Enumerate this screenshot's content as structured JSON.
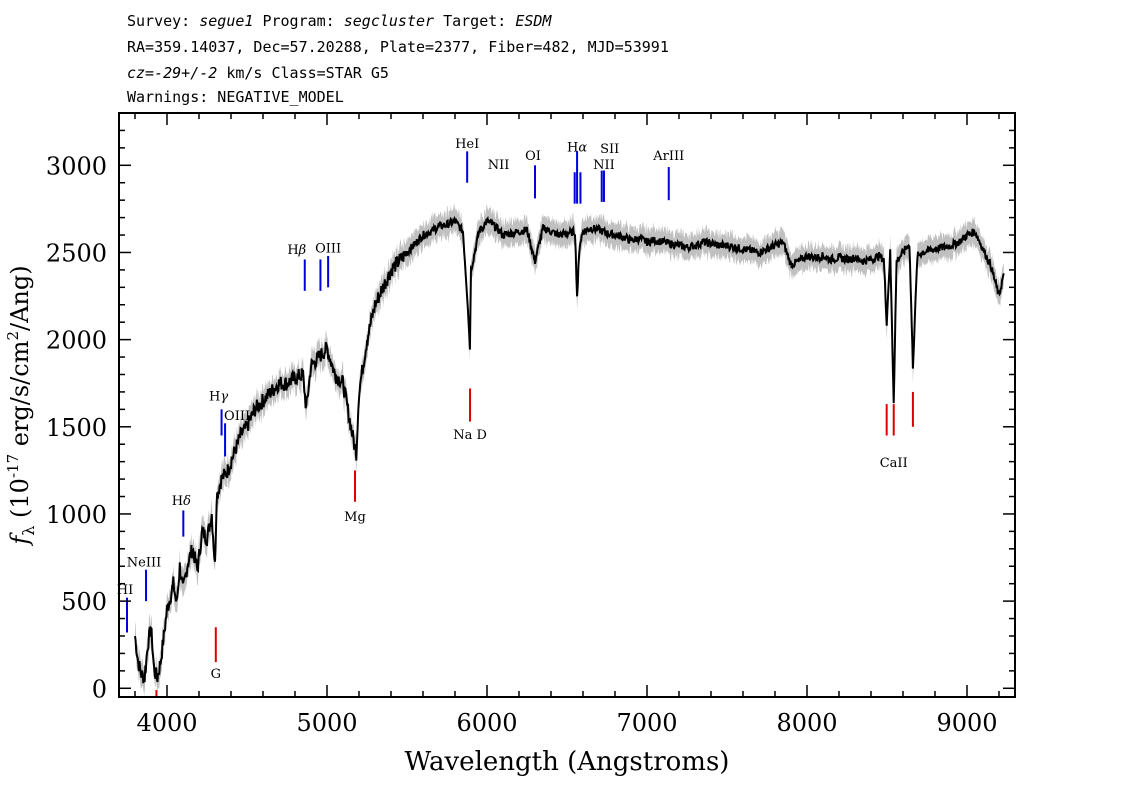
{
  "header": {
    "survey_label": "Survey:",
    "survey": "segue1",
    "program_label": "Program:",
    "program": "segcluster",
    "target_label": "Target:",
    "target": "ESDM",
    "line2": "RA=359.14037, Dec=57.20288, Plate=2377, Fiber=482, MJD=53991",
    "cz": "cz=-29+/-2",
    "cz_units": "km/s Class=STAR G5",
    "warnings": "Warnings: NEGATIVE_MODEL"
  },
  "chart_data": {
    "type": "line",
    "title": "",
    "xlabel": "Wavelength (Angstroms)",
    "ylabel_main": "f",
    "ylabel_sub": "λ",
    "ylabel_rest": " (10",
    "ylabel_exp": "-17",
    "ylabel_tail": " erg/s/cm",
    "ylabel_sq": "2",
    "ylabel_end": "/Ang)",
    "xlim": [
      3700,
      9300
    ],
    "ylim": [
      -50,
      3300
    ],
    "xticks": [
      4000,
      5000,
      6000,
      7000,
      8000,
      9000
    ],
    "yticks": [
      0,
      500,
      1000,
      1500,
      2000,
      2500,
      3000
    ],
    "grid": false,
    "series": [
      {
        "name": "flux",
        "color": "#000000",
        "x": [
          3800,
          3820,
          3840,
          3860,
          3880,
          3900,
          3920,
          3940,
          3960,
          3980,
          4000,
          4020,
          4040,
          4060,
          4080,
          4100,
          4130,
          4160,
          4190,
          4220,
          4250,
          4280,
          4300,
          4310,
          4340,
          4380,
          4420,
          4460,
          4500,
          4550,
          4600,
          4650,
          4700,
          4750,
          4800,
          4850,
          4870,
          4900,
          4950,
          5000,
          5050,
          5100,
          5150,
          5170,
          5183,
          5200,
          5250,
          5300,
          5350,
          5400,
          5450,
          5500,
          5550,
          5600,
          5650,
          5700,
          5750,
          5800,
          5850,
          5880,
          5893,
          5900,
          5950,
          6000,
          6050,
          6100,
          6150,
          6200,
          6250,
          6300,
          6350,
          6400,
          6450,
          6500,
          6550,
          6563,
          6580,
          6600,
          6650,
          6700,
          6750,
          6800,
          6850,
          6900,
          6950,
          7000,
          7050,
          7100,
          7150,
          7200,
          7250,
          7300,
          7350,
          7400,
          7450,
          7500,
          7550,
          7600,
          7650,
          7700,
          7750,
          7800,
          7850,
          7900,
          7950,
          8000,
          8050,
          8100,
          8150,
          8200,
          8250,
          8300,
          8350,
          8400,
          8450,
          8480,
          8498,
          8520,
          8542,
          8560,
          8600,
          8640,
          8662,
          8690,
          8720,
          8760,
          8800,
          8850,
          8900,
          8950,
          9000,
          9050,
          9100,
          9150,
          9200,
          9230
        ],
        "y": [
          300,
          150,
          80,
          60,
          250,
          350,
          100,
          60,
          150,
          300,
          450,
          520,
          600,
          480,
          700,
          560,
          720,
          800,
          680,
          900,
          860,
          1000,
          700,
          1100,
          1200,
          1250,
          1350,
          1450,
          1500,
          1600,
          1650,
          1700,
          1750,
          1750,
          1780,
          1800,
          1600,
          1850,
          1900,
          1950,
          1800,
          1750,
          1500,
          1400,
          1350,
          1700,
          2000,
          2200,
          2300,
          2400,
          2450,
          2500,
          2550,
          2600,
          2620,
          2650,
          2660,
          2680,
          2620,
          2200,
          1950,
          2400,
          2620,
          2680,
          2650,
          2600,
          2610,
          2620,
          2630,
          2450,
          2640,
          2620,
          2600,
          2610,
          2620,
          2250,
          2550,
          2620,
          2640,
          2630,
          2610,
          2600,
          2590,
          2570,
          2580,
          2560,
          2570,
          2560,
          2550,
          2540,
          2530,
          2540,
          2560,
          2550,
          2540,
          2540,
          2530,
          2520,
          2510,
          2500,
          2520,
          2540,
          2560,
          2430,
          2450,
          2480,
          2470,
          2480,
          2460,
          2470,
          2460,
          2470,
          2450,
          2460,
          2480,
          2460,
          2100,
          2500,
          1650,
          2450,
          2500,
          2550,
          1850,
          2480,
          2500,
          2510,
          2520,
          2530,
          2540,
          2560,
          2600,
          2620,
          2520,
          2420,
          2250,
          2380
        ]
      },
      {
        "name": "error_band",
        "color": "#c0c0c0",
        "halfwidth": 70
      }
    ],
    "emission_lines": [
      {
        "label": "HI",
        "x": 3750,
        "y0": 320,
        "y1": 520,
        "label_y": 540,
        "label_x_offset": -2
      },
      {
        "label": "NeIII",
        "x": 3869,
        "y0": 500,
        "y1": 680,
        "label_y": 700,
        "label_x_offset": -2
      },
      {
        "label": "H",
        "greek": "δ",
        "x": 4102,
        "y0": 870,
        "y1": 1020,
        "label_y": 1050,
        "label_x_offset": -2
      },
      {
        "label": "H",
        "greek": "γ",
        "x": 4341,
        "y0": 1450,
        "y1": 1600,
        "label_y": 1650,
        "label_x_offset": -3
      },
      {
        "label": "OIII",
        "x": 4363,
        "y0": 1330,
        "y1": 1520,
        "label_y": 1540,
        "label_x_offset": 12
      },
      {
        "label": "H",
        "greek": "β",
        "x": 4861,
        "y0": 2280,
        "y1": 2460,
        "label_y": 2490,
        "label_x_offset": -8
      },
      {
        "label": "OIII",
        "x": 4959,
        "y0": 2280,
        "y1": 2460,
        "label_y": 0,
        "label_x_offset": 0,
        "nolabel": true
      },
      {
        "label": "OIII",
        "x": 5007,
        "y0": 2300,
        "y1": 2480,
        "label_y": 2500,
        "label_x_offset": 0
      },
      {
        "label": "HeI",
        "x": 5876,
        "y0": 2900,
        "y1": 3080,
        "label_y": 3100,
        "label_x_offset": 0
      },
      {
        "label": "OI",
        "x": 6300,
        "y0": 2810,
        "y1": 3000,
        "label_y": 3030,
        "label_x_offset": -2
      },
      {
        "label": "NII",
        "x": 6548,
        "y0": 2780,
        "y1": 2960,
        "label_y": 0,
        "label_x_offset": 0,
        "nolabel": true
      },
      {
        "label": "NII",
        "x": 6510,
        "y0": 0,
        "y1": 0,
        "label_y": 2980,
        "label_x_offset": -70,
        "textonly": true
      },
      {
        "label": "H",
        "greek": "α",
        "x": 6563,
        "y0": 2780,
        "y1": 3080,
        "label_y": 3080,
        "label_x_offset": 0
      },
      {
        "label": "NII",
        "x": 6584,
        "y0": 2780,
        "y1": 2960,
        "label_y": 0,
        "label_x_offset": 0,
        "nolabel": true
      },
      {
        "label": "SII",
        "x": 6717,
        "y0": 2790,
        "y1": 2970,
        "label_y": 3070,
        "label_x_offset": 8
      },
      {
        "label": "NII",
        "x": 6731,
        "y0": 2790,
        "y1": 2970,
        "label_y": 2980,
        "label_x_offset": 0
      },
      {
        "label": "ArIII",
        "x": 7136,
        "y0": 2800,
        "y1": 2990,
        "label_y": 3030,
        "label_x_offset": 0
      }
    ],
    "absorption_lines": [
      {
        "label": "G",
        "x": 4305,
        "y0": 150,
        "y1": 350,
        "label_y": 60
      },
      {
        "label": "Mg",
        "x": 5175,
        "y0": 1070,
        "y1": 1250,
        "label_y": 960
      },
      {
        "label": "Na D",
        "x": 5894,
        "y0": 1530,
        "y1": 1720,
        "label_y": 1430
      },
      {
        "label": "CaII",
        "x": 8542,
        "y0": 1450,
        "y1": 1630,
        "label_y": 1270
      },
      {
        "label": "",
        "x": 8498,
        "y0": 1450,
        "y1": 1630,
        "label_y": 0
      },
      {
        "label": "",
        "x": 8662,
        "y0": 1500,
        "y1": 1700,
        "label_y": 0
      },
      {
        "label": "",
        "x": 3934,
        "y0": -50,
        "y1": -10,
        "label_y": 0
      }
    ]
  }
}
